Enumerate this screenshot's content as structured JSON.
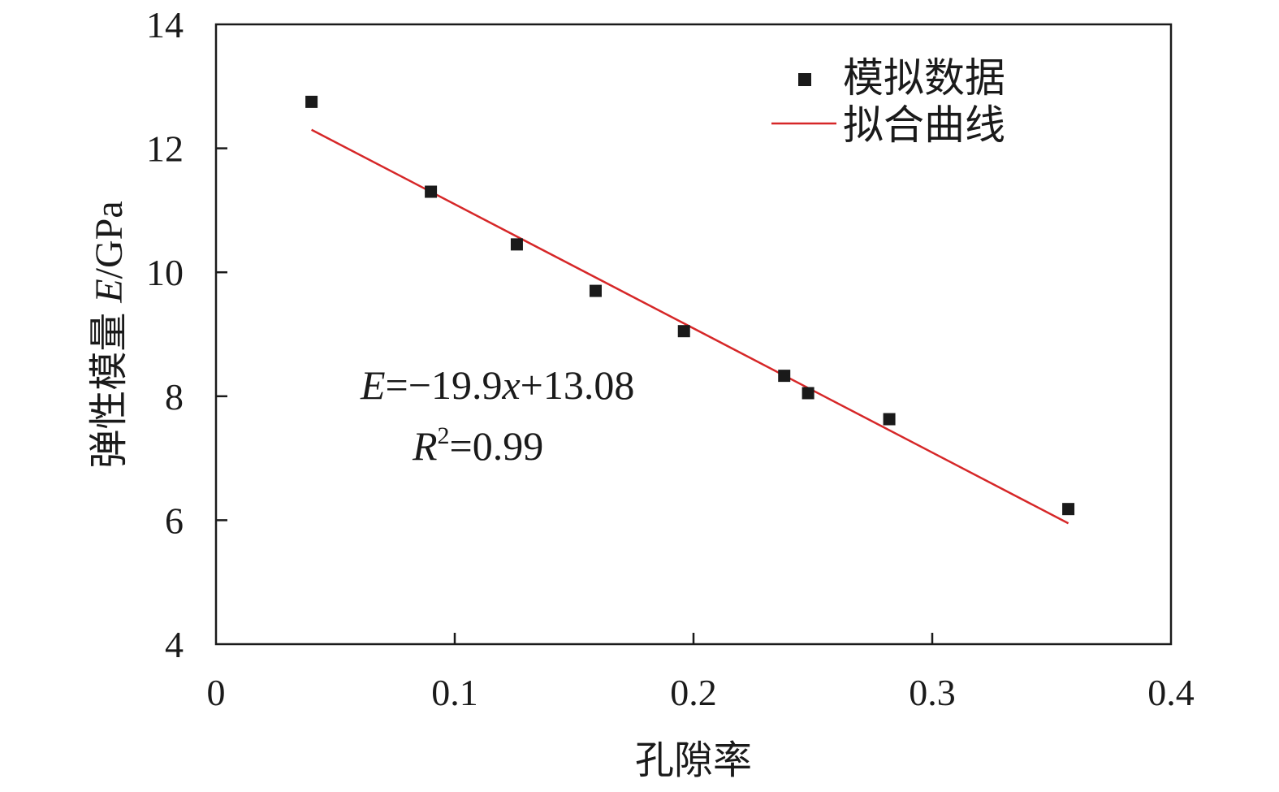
{
  "chart_data": {
    "type": "scatter",
    "xlabel": "孔隙率",
    "ylabel": "弹性模量 E/GPa",
    "ylabel_parts": {
      "text": "弹性模量 ",
      "var": "E",
      "unit": "/GPa"
    },
    "xlim": [
      0,
      0.4
    ],
    "ylim": [
      4,
      14
    ],
    "xticks": [
      "0",
      "0.1",
      "0.2",
      "0.3",
      "0.4"
    ],
    "yticks": [
      "4",
      "6",
      "8",
      "10",
      "12",
      "14"
    ],
    "xtick_values": [
      0,
      0.1,
      0.2,
      0.3,
      0.4
    ],
    "ytick_values": [
      4,
      6,
      8,
      10,
      12,
      14
    ],
    "grid": false,
    "legend_position": "top-right",
    "series": [
      {
        "name": "模拟数据",
        "kind": "scatter",
        "marker": "square",
        "color": "#1a1a1a",
        "x": [
          0.04,
          0.09,
          0.126,
          0.159,
          0.196,
          0.238,
          0.248,
          0.282,
          0.357
        ],
        "y": [
          12.75,
          11.3,
          10.45,
          9.7,
          9.05,
          8.33,
          8.05,
          7.63,
          6.18
        ]
      },
      {
        "name": "拟合曲线",
        "kind": "line",
        "color": "#d62728",
        "x": [
          0.04,
          0.357
        ],
        "y": [
          12.3,
          5.95
        ]
      }
    ],
    "annotations": {
      "equation": {
        "var_e": "E",
        "mid": "=−19.9",
        "var_x": "x",
        "tail": "+13.08"
      },
      "r2": {
        "var_r": "R",
        "sup": "2",
        "tail": "=0.99"
      }
    }
  }
}
